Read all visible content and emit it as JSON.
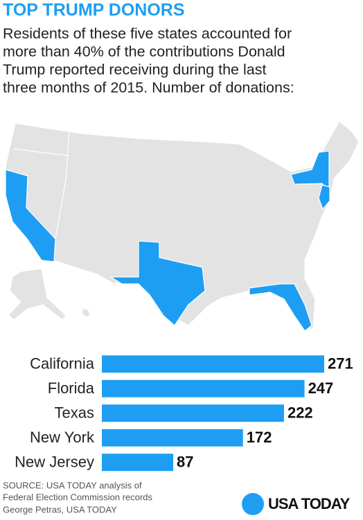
{
  "title": "TOP TRUMP DONORS",
  "subtitle": [
    "Residents of these five states accounted for",
    "more than 40% of the contributions Donald",
    "Trump reported receiving during the last",
    "three months of 2015. Number of donations:"
  ],
  "chart_data": {
    "type": "bar",
    "orientation": "horizontal",
    "color": "#1e9ef2",
    "categories": [
      "California",
      "Florida",
      "Texas",
      "New York",
      "New Jersey"
    ],
    "values": [
      271,
      247,
      222,
      172,
      87
    ]
  },
  "source": [
    "SOURCE:  USA TODAY analysis of",
    "Federal Election Commission records",
    "George Petras, USA TODAY"
  ],
  "logo": "USA TODAY"
}
